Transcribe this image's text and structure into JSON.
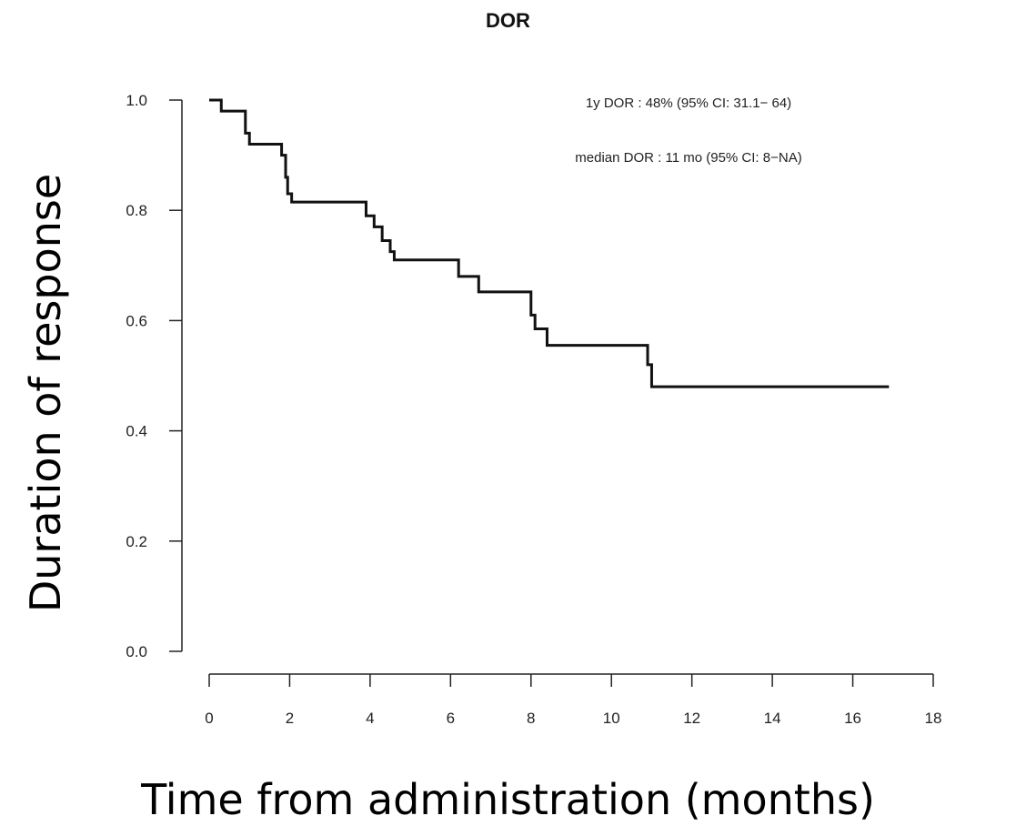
{
  "chart_data": {
    "type": "line",
    "title": "DOR",
    "xlabel": "Time from administration (months)",
    "ylabel": "Duration of response",
    "xlim": [
      0,
      18
    ],
    "ylim": [
      0,
      1.0
    ],
    "x_ticks": [
      "0",
      "2",
      "4",
      "6",
      "8",
      "10",
      "12",
      "14",
      "16",
      "18"
    ],
    "y_ticks": [
      "0.0",
      "0.2",
      "0.4",
      "0.6",
      "0.8",
      "1.0"
    ],
    "grid": false,
    "annotations": [
      "1y DOR : 48% (95% CI: 31.1− 64)",
      "median DOR : 11 mo (95% CI: 8−NA)"
    ],
    "series": [
      {
        "step": "post",
        "x": [
          0,
          0.3,
          0.9,
          1.0,
          1.8,
          1.9,
          1.95,
          2.05,
          3.9,
          4.1,
          4.3,
          4.5,
          4.6,
          6.2,
          6.7,
          8.0,
          8.1,
          8.4,
          10.9,
          11.0,
          16.9
        ],
        "y": [
          1.0,
          0.98,
          0.94,
          0.92,
          0.9,
          0.86,
          0.83,
          0.815,
          0.79,
          0.77,
          0.745,
          0.725,
          0.71,
          0.68,
          0.652,
          0.61,
          0.585,
          0.555,
          0.52,
          0.48,
          0.48
        ]
      }
    ]
  }
}
